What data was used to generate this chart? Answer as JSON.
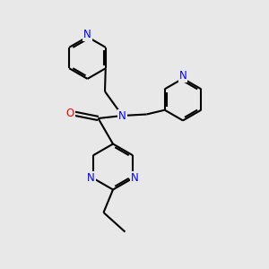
{
  "background_color": "#e8e8e8",
  "bond_color": "#000000",
  "bond_width": 1.5,
  "atom_colors": {
    "N": "#0000ff",
    "O": "#ff0000",
    "C": "#000000"
  },
  "font_size": 8.5,
  "figsize": [
    3.0,
    3.0
  ],
  "dpi": 100,
  "xlim": [
    0,
    10
  ],
  "ylim": [
    0,
    10
  ]
}
